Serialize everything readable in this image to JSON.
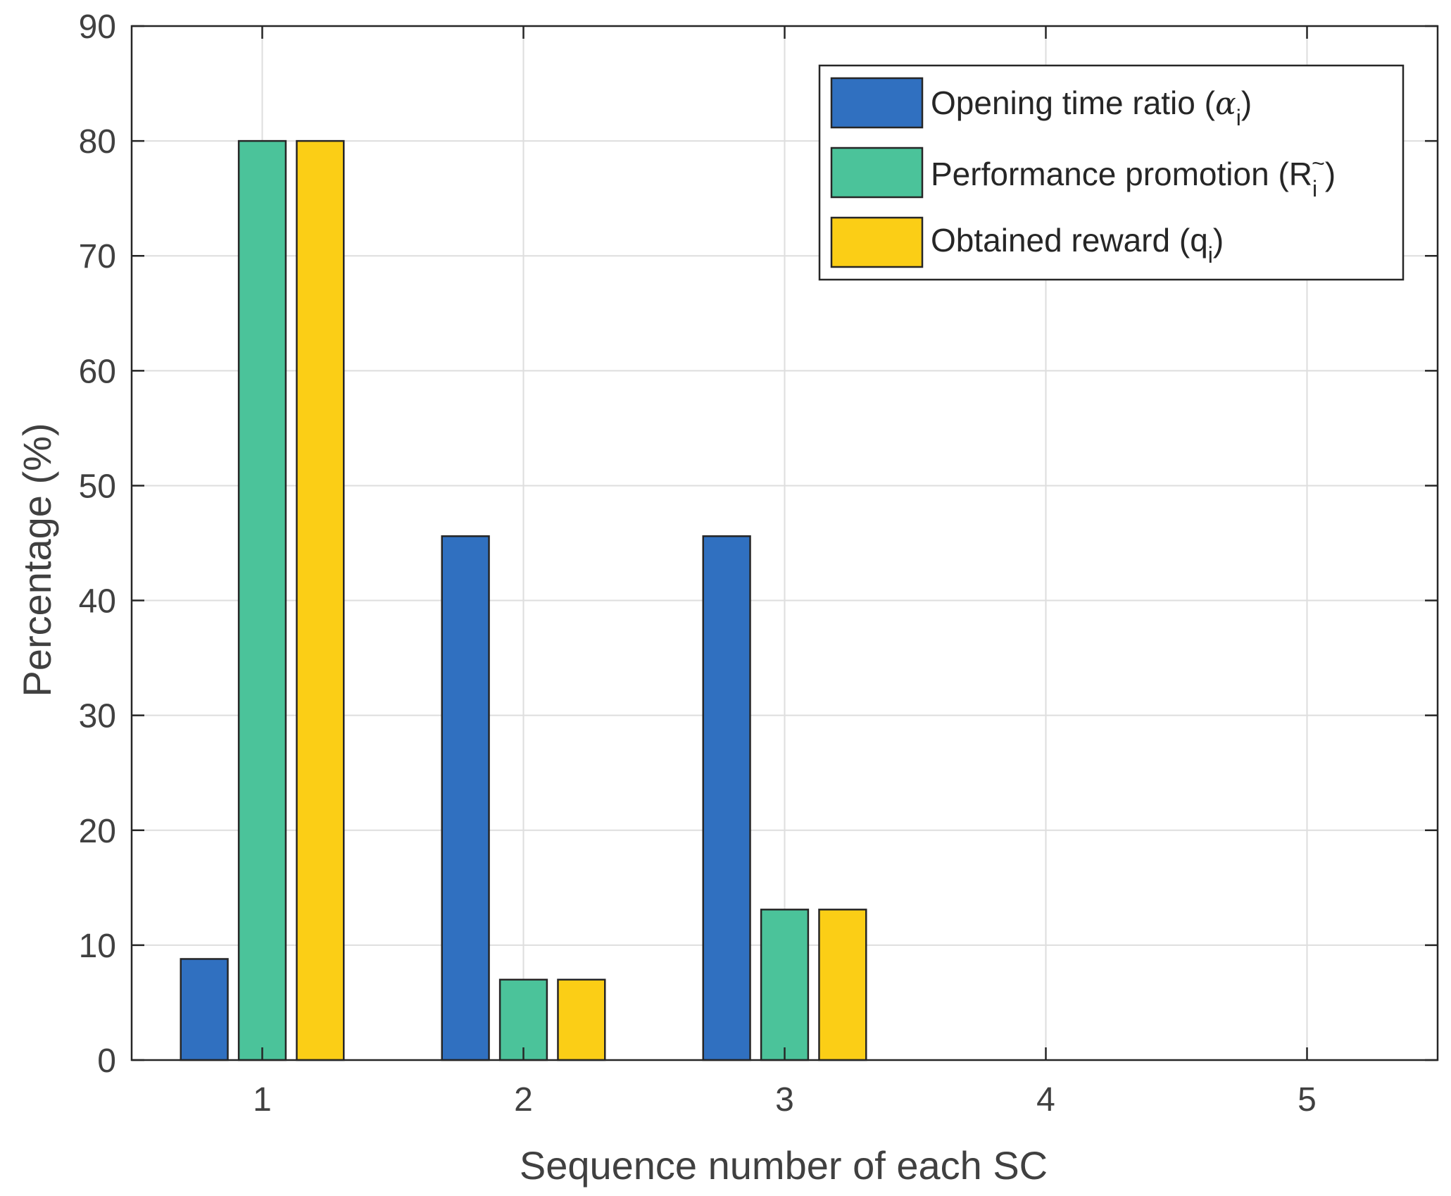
{
  "chart_data": {
    "type": "bar",
    "categories": [
      "1",
      "2",
      "3",
      "4",
      "5"
    ],
    "series": [
      {
        "name": "Opening time ratio",
        "symbol": "α",
        "subscript": "i",
        "color": "#3070c0",
        "values": [
          8.8,
          45.6,
          45.6,
          0,
          0
        ]
      },
      {
        "name": "Performance promotion",
        "symbol": "R",
        "subscript": "i",
        "superscript": "~",
        "color": "#4bc39a",
        "values": [
          80,
          7,
          13.1,
          0,
          0
        ]
      },
      {
        "name": "Obtained reward",
        "symbol": "q",
        "subscript": "i",
        "color": "#fbce16",
        "values": [
          80,
          7,
          13.1,
          0,
          0
        ]
      }
    ],
    "xlabel": "Sequence number of each SC",
    "ylabel": "Percentage (%)",
    "ylim": [
      0,
      90
    ],
    "yticks": [
      0,
      10,
      20,
      30,
      40,
      50,
      60,
      70,
      80,
      90
    ],
    "grid": true,
    "legend_position": "top-right"
  }
}
